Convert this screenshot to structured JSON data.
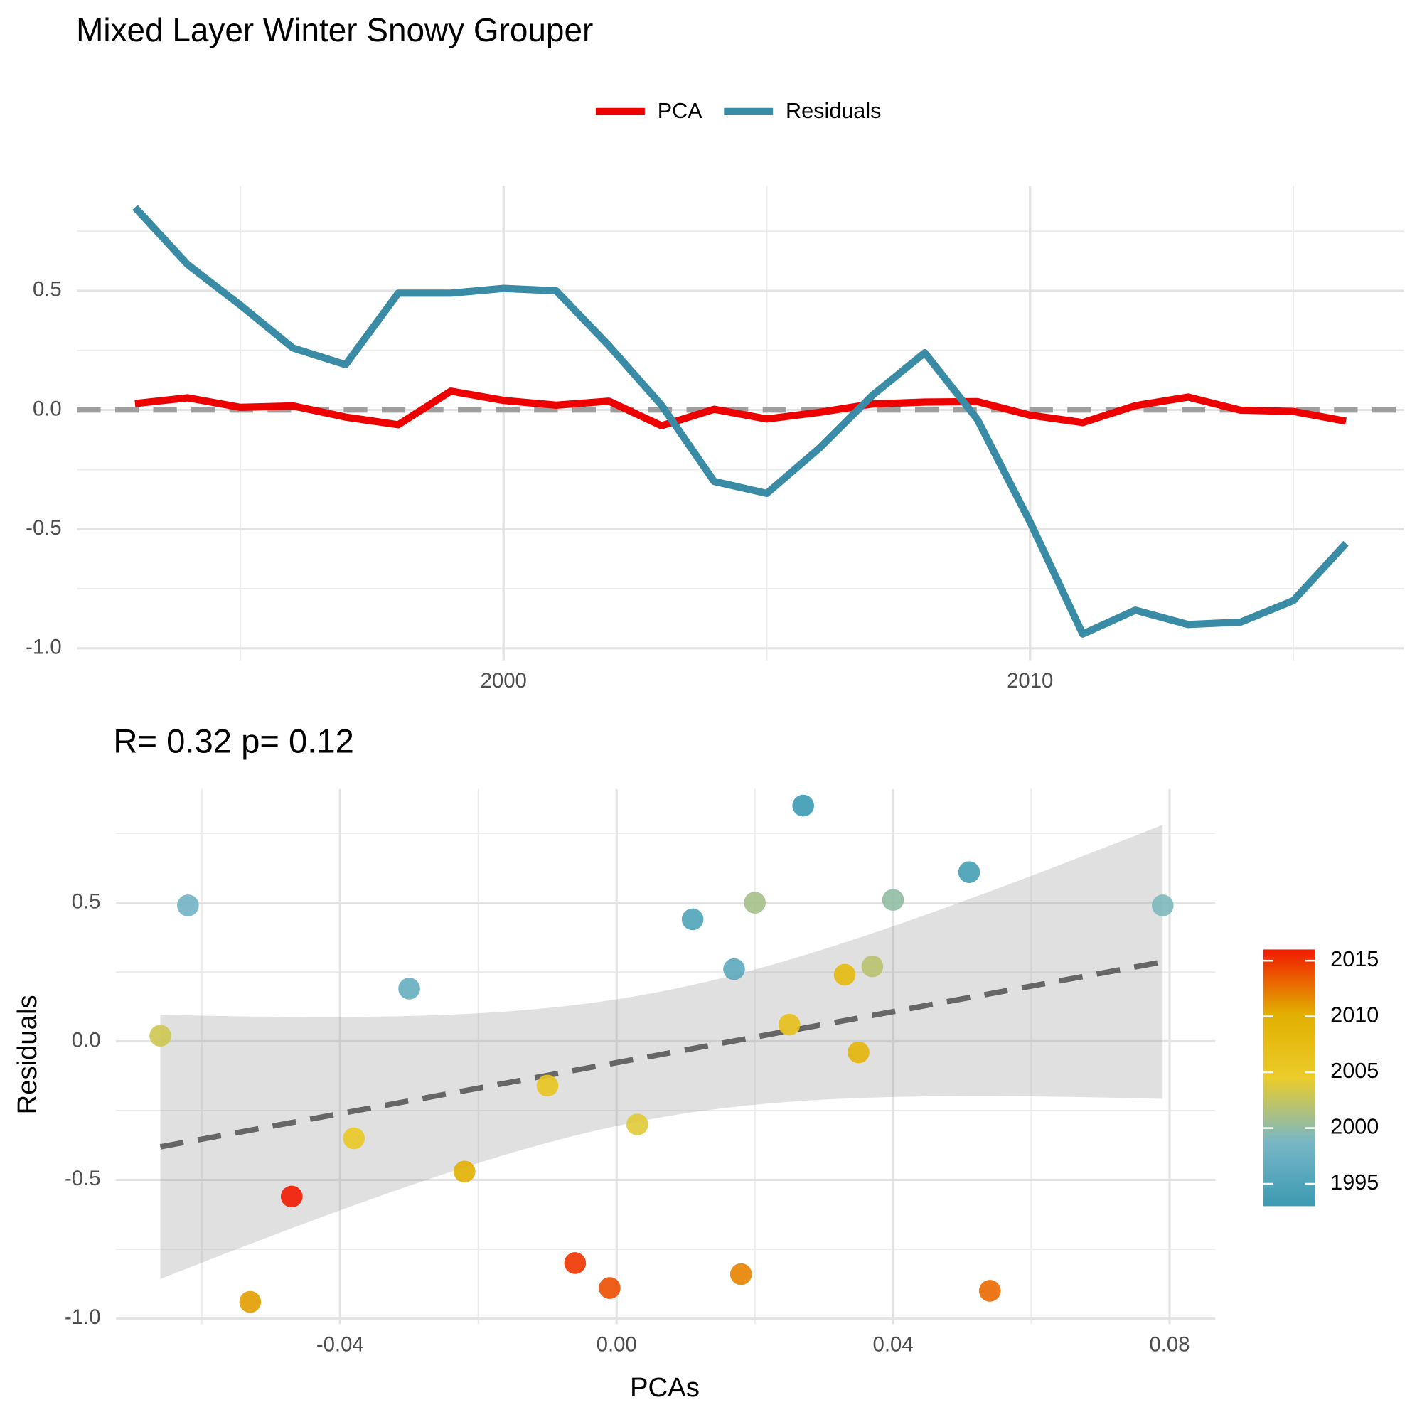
{
  "title": "Mixed Layer Winter Snowy Grouper",
  "chart_data": [
    {
      "type": "line",
      "x": [
        1993,
        1994,
        1995,
        1996,
        1997,
        1998,
        1999,
        2000,
        2001,
        2002,
        2003,
        2004,
        2005,
        2006,
        2007,
        2008,
        2009,
        2010,
        2011,
        2012,
        2013,
        2014,
        2015,
        2016
      ],
      "series": [
        {
          "name": "PCA",
          "color": "#ee0000",
          "values": [
            0.027,
            0.051,
            0.011,
            0.017,
            -0.03,
            -0.062,
            0.079,
            0.04,
            0.02,
            0.037,
            -0.066,
            0.003,
            -0.038,
            -0.01,
            0.025,
            0.033,
            0.035,
            -0.022,
            -0.053,
            0.018,
            0.054,
            -0.001,
            -0.006,
            -0.047
          ]
        },
        {
          "name": "Residuals",
          "color": "#3a8ca6",
          "values": [
            0.85,
            0.61,
            0.44,
            0.26,
            0.19,
            0.49,
            0.49,
            0.51,
            0.5,
            0.27,
            0.02,
            -0.3,
            -0.35,
            -0.16,
            0.06,
            0.24,
            -0.04,
            -0.47,
            -0.94,
            -0.84,
            -0.9,
            -0.89,
            -0.8,
            -0.56
          ]
        }
      ],
      "xlim": [
        1991.9,
        2017.1
      ],
      "xticks": [
        2000,
        2010
      ],
      "ylim": [
        -1.05,
        0.94
      ],
      "yticks": [
        {
          "value": -1,
          "label": "-1.0"
        },
        -0.5,
        {
          "value": 0,
          "label": "0.0"
        },
        0.5
      ],
      "reference_line": 0,
      "grid": true,
      "minor_grid": true,
      "legend": "top"
    },
    {
      "type": "scatter",
      "subtitle": "R= 0.32  p= 0.12",
      "xlabel": "PCAs",
      "ylabel": "Residuals",
      "x": [
        0.027,
        0.051,
        0.011,
        0.017,
        -0.03,
        -0.062,
        0.079,
        0.04,
        0.02,
        0.037,
        -0.066,
        0.003,
        -0.038,
        -0.01,
        0.025,
        0.033,
        0.035,
        -0.022,
        -0.053,
        0.018,
        0.054,
        -0.001,
        -0.006,
        -0.047
      ],
      "y": [
        0.85,
        0.61,
        0.44,
        0.26,
        0.19,
        0.49,
        0.49,
        0.51,
        0.5,
        0.27,
        0.02,
        -0.3,
        -0.35,
        -0.16,
        0.06,
        0.24,
        -0.04,
        -0.47,
        -0.94,
        -0.84,
        -0.9,
        -0.89,
        -0.8,
        -0.56
      ],
      "color_values": [
        1993,
        1994,
        1995,
        1996,
        1997,
        1998,
        1999,
        2000,
        2001,
        2002,
        2003,
        2004,
        2005,
        2006,
        2007,
        2008,
        2009,
        2010,
        2011,
        2012,
        2013,
        2014,
        2015,
        2016
      ],
      "colorbar": {
        "lim": [
          1993,
          2016
        ],
        "ticks": [
          1995,
          2000,
          2005,
          2010,
          2015
        ],
        "colors": [
          "#3B9AB2",
          "#78B7C5",
          "#EBCC2A",
          "#E1AF00",
          "#F21A00"
        ]
      },
      "xlim": [
        -0.0724,
        0.0866
      ],
      "xticks": [
        -0.04,
        {
          "value": 0,
          "label": "0.00"
        },
        0.04,
        0.08
      ],
      "ylim": [
        -1.02,
        0.91
      ],
      "yticks": [
        {
          "value": -1,
          "label": "-1.0"
        },
        -0.5,
        {
          "value": 0,
          "label": "0.0"
        },
        0.5
      ],
      "fit": "lm",
      "confidence_band": true,
      "grid": true,
      "minor_grid": true
    }
  ]
}
